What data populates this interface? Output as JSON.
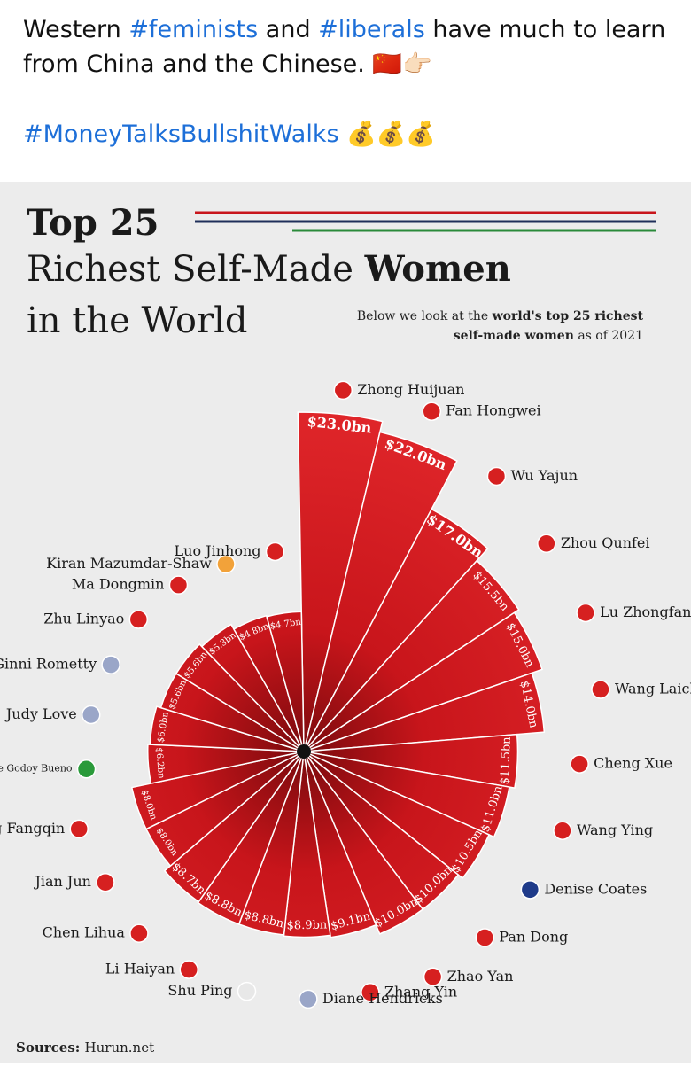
{
  "post": {
    "line1": [
      "Western ",
      "#feminists",
      " and ",
      "#liberals",
      " have much to learn from China and the Chinese. 🇨🇳👉🏻"
    ],
    "line2": [
      "#MoneyTalksBullshitWalks",
      " 💰💰💰"
    ]
  },
  "chart_data": {
    "type": "radial-bar",
    "title": [
      "Top 25",
      "Richest Self-Made ",
      "Women",
      "in the World"
    ],
    "subtitle": [
      "Below we look at the ",
      "world's top 25 richest",
      "self-made women",
      " as of 2021"
    ],
    "source": [
      "Sources: ",
      "Hurun.net"
    ],
    "categories": [
      "Zhong Huijuan",
      "Fan Hongwei",
      "Wu Yajun",
      "Zhou Qunfei",
      "Lu Zhongfang",
      "Wang Laichun",
      "Cheng Xue",
      "Wang Ying",
      "Denise Coates",
      "Pan Dong",
      "Zhao Yan",
      "Zhang Yin",
      "Diane Hendricks",
      "Shu Ping",
      "Li Haiyan",
      "Chen Lihua",
      "Jian Jun",
      "Zeng Fangqin",
      "Dulce Pugliese De Godoy Bueno",
      "Judy Love",
      "Ginni Rometty",
      "Zhu Linyao",
      "Ma Dongmin",
      "Kiran Mazumdar-Shaw",
      "Luo Jinhong"
    ],
    "values": [
      23.0,
      22.0,
      17.0,
      15.5,
      15.0,
      14.0,
      11.5,
      11.0,
      10.5,
      10.0,
      10.0,
      9.1,
      8.9,
      8.8,
      8.8,
      8.7,
      8.0,
      8.0,
      6.2,
      6.0,
      5.6,
      5.6,
      5.3,
      4.8,
      4.7
    ],
    "value_labels": [
      "$23.0bn",
      "$22.0bn",
      "$17.0bn",
      "$15.5bn",
      "$15.0bn",
      "$14.0bn",
      "$11.5bn",
      "$11.0bn",
      "$10.5bn",
      "$10.0bn",
      "$10.0bn",
      "$9.1bn",
      "$8.9bn",
      "$8.8bn",
      "$8.8bn",
      "$8.7bn",
      "$8.0bn",
      "$8.0bn",
      "$6.2bn",
      "$6.0bn",
      "$5.6bn",
      "$5.6bn",
      "$5.3bn",
      "$4.8bn",
      "$4.7bn"
    ],
    "color": "#c8151b",
    "flag_colors": [
      "#d62020",
      "#d62020",
      "#d62020",
      "#d62020",
      "#d62020",
      "#d62020",
      "#d62020",
      "#d62020",
      "#1f3b8a",
      "#d62020",
      "#d62020",
      "#d62020",
      "#9aa6c8",
      "#e8e8e8",
      "#d62020",
      "#d62020",
      "#d62020",
      "#d62020",
      "#2a9a3a",
      "#9aa6c8",
      "#9aa6c8",
      "#d62020",
      "#d62020",
      "#f2a23a",
      "#d62020"
    ]
  }
}
